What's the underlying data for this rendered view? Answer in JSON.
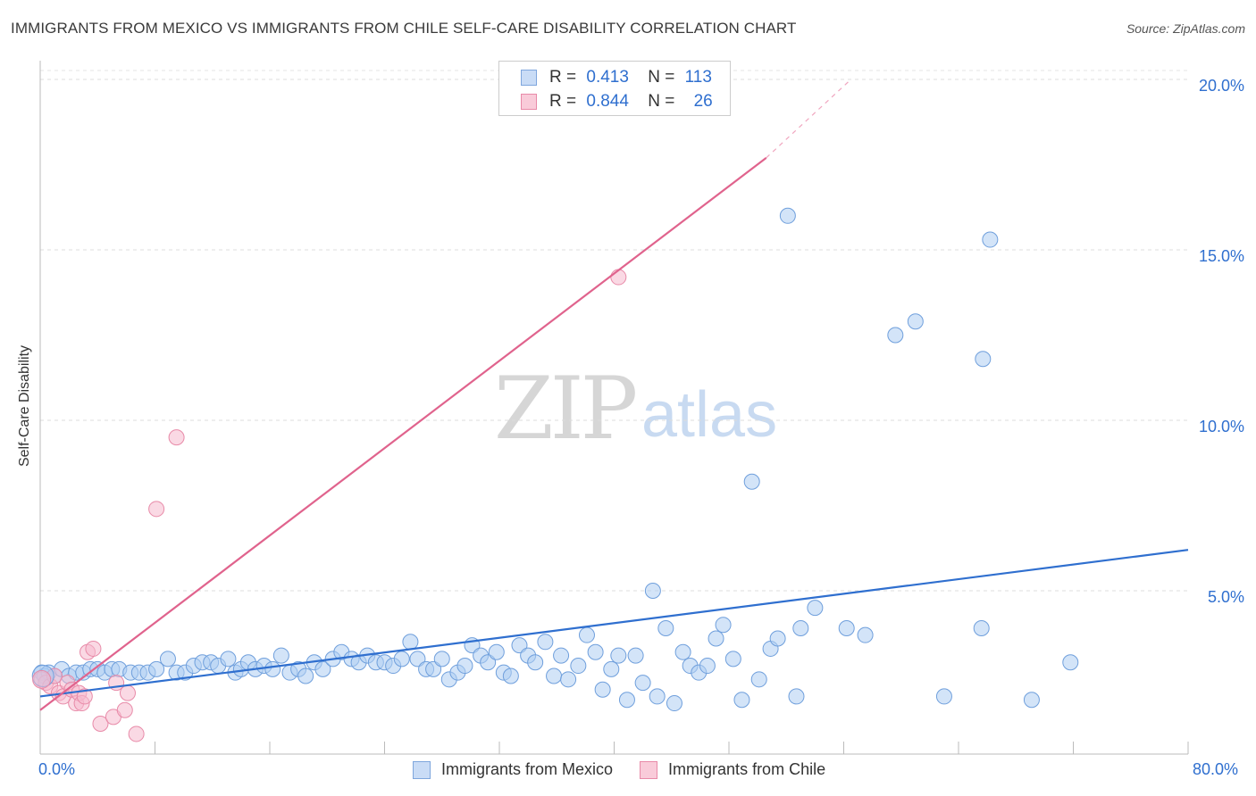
{
  "header": {
    "title": "IMMIGRANTS FROM MEXICO VS IMMIGRANTS FROM CHILE SELF-CARE DISABILITY CORRELATION CHART",
    "source": "Source: ZipAtlas.com"
  },
  "watermark": {
    "zip": "ZIP",
    "atlas": "atlas"
  },
  "legend_top": {
    "rows": [
      {
        "r_label": "R =",
        "r_value": "0.413",
        "n_label": "N =",
        "n_value": "113",
        "color": "#aecdf3"
      },
      {
        "r_label": "R =",
        "r_value": "0.844",
        "n_label": "N =",
        "n_value": "26",
        "color": "#f6b9cd"
      }
    ]
  },
  "chart_data": {
    "type": "scatter",
    "title": "IMMIGRANTS FROM MEXICO VS IMMIGRANTS FROM CHILE SELF-CARE DISABILITY CORRELATION CHART",
    "xlabel": "",
    "ylabel": "Self-Care Disability",
    "xlim": [
      0,
      80
    ],
    "ylim": [
      0,
      20.5
    ],
    "x_tick_labels": [
      "0.0%",
      "80.0%"
    ],
    "y_ticks": [
      5,
      10,
      15,
      20
    ],
    "y_tick_labels": [
      "5.0%",
      "10.0%",
      "15.0%",
      "20.0%"
    ],
    "grid": true,
    "legend_position": "bottom",
    "series": [
      {
        "name": "Immigrants from Mexico",
        "color": "#aecdf3",
        "edge": "#6f9fdc",
        "trend": {
          "x": [
            0,
            80
          ],
          "y": [
            1.9,
            6.2
          ],
          "color": "#2f6fcf"
        },
        "points": [
          [
            0.1,
            2.6
          ],
          [
            0.3,
            2.5
          ],
          [
            0.6,
            2.6
          ],
          [
            1.0,
            2.5
          ],
          [
            1.5,
            2.7
          ],
          [
            2.0,
            2.5
          ],
          [
            2.5,
            2.6
          ],
          [
            3.0,
            2.6
          ],
          [
            3.5,
            2.7
          ],
          [
            4.0,
            2.7
          ],
          [
            4.5,
            2.6
          ],
          [
            5.0,
            2.7
          ],
          [
            5.5,
            2.7
          ],
          [
            6.3,
            2.6
          ],
          [
            6.9,
            2.6
          ],
          [
            7.5,
            2.6
          ],
          [
            8.1,
            2.7
          ],
          [
            8.9,
            3.0
          ],
          [
            9.5,
            2.6
          ],
          [
            10.1,
            2.6
          ],
          [
            10.7,
            2.8
          ],
          [
            11.3,
            2.9
          ],
          [
            11.9,
            2.9
          ],
          [
            12.4,
            2.8
          ],
          [
            13.1,
            3.0
          ],
          [
            13.6,
            2.6
          ],
          [
            14.0,
            2.7
          ],
          [
            14.5,
            2.9
          ],
          [
            15.0,
            2.7
          ],
          [
            15.6,
            2.8
          ],
          [
            16.2,
            2.7
          ],
          [
            16.8,
            3.1
          ],
          [
            17.4,
            2.6
          ],
          [
            18.0,
            2.7
          ],
          [
            18.5,
            2.5
          ],
          [
            19.1,
            2.9
          ],
          [
            19.7,
            2.7
          ],
          [
            20.4,
            3.0
          ],
          [
            21.0,
            3.2
          ],
          [
            21.7,
            3.0
          ],
          [
            22.2,
            2.9
          ],
          [
            22.8,
            3.1
          ],
          [
            23.4,
            2.9
          ],
          [
            24.0,
            2.9
          ],
          [
            24.6,
            2.8
          ],
          [
            25.2,
            3.0
          ],
          [
            25.8,
            3.5
          ],
          [
            26.3,
            3.0
          ],
          [
            26.9,
            2.7
          ],
          [
            27.4,
            2.7
          ],
          [
            28.0,
            3.0
          ],
          [
            28.5,
            2.4
          ],
          [
            29.1,
            2.6
          ],
          [
            29.6,
            2.8
          ],
          [
            30.1,
            3.4
          ],
          [
            30.7,
            3.1
          ],
          [
            31.2,
            2.9
          ],
          [
            31.8,
            3.2
          ],
          [
            32.3,
            2.6
          ],
          [
            32.8,
            2.5
          ],
          [
            33.4,
            3.4
          ],
          [
            34.0,
            3.1
          ],
          [
            34.5,
            2.9
          ],
          [
            35.2,
            3.5
          ],
          [
            35.8,
            2.5
          ],
          [
            36.3,
            3.1
          ],
          [
            36.8,
            2.4
          ],
          [
            37.5,
            2.8
          ],
          [
            38.1,
            3.7
          ],
          [
            38.7,
            3.2
          ],
          [
            39.2,
            2.1
          ],
          [
            39.8,
            2.7
          ],
          [
            40.3,
            3.1
          ],
          [
            40.9,
            1.8
          ],
          [
            41.5,
            3.1
          ],
          [
            42.0,
            2.3
          ],
          [
            42.7,
            5.0
          ],
          [
            43.0,
            1.9
          ],
          [
            43.6,
            3.9
          ],
          [
            44.2,
            1.7
          ],
          [
            44.8,
            3.2
          ],
          [
            45.3,
            2.8
          ],
          [
            45.9,
            2.6
          ],
          [
            46.5,
            2.8
          ],
          [
            47.1,
            3.6
          ],
          [
            47.6,
            4.0
          ],
          [
            48.3,
            3.0
          ],
          [
            48.9,
            1.8
          ],
          [
            49.6,
            8.2
          ],
          [
            50.1,
            2.4
          ],
          [
            50.9,
            3.3
          ],
          [
            51.4,
            3.6
          ],
          [
            52.1,
            16.0
          ],
          [
            52.7,
            1.9
          ],
          [
            53.0,
            3.9
          ],
          [
            54.0,
            4.5
          ],
          [
            56.2,
            3.9
          ],
          [
            57.5,
            3.7
          ],
          [
            59.6,
            12.5
          ],
          [
            61.0,
            12.9
          ],
          [
            63.0,
            1.9
          ],
          [
            65.7,
            11.8
          ],
          [
            66.2,
            15.3
          ],
          [
            65.6,
            3.9
          ],
          [
            69.1,
            1.8
          ],
          [
            71.8,
            2.9
          ]
        ]
      },
      {
        "name": "Immigrants from Chile",
        "color": "#f6b9cd",
        "edge": "#e88aa8",
        "trend": {
          "x": [
            0,
            50.6
          ],
          "y": [
            1.5,
            17.7
          ],
          "dash_to": [
            56.5,
            20.0
          ],
          "color": "#e0638d"
        },
        "points": [
          [
            0.1,
            2.4
          ],
          [
            0.4,
            2.3
          ],
          [
            0.7,
            2.2
          ],
          [
            1.0,
            2.5
          ],
          [
            1.3,
            2.0
          ],
          [
            1.6,
            1.9
          ],
          [
            1.9,
            2.3
          ],
          [
            2.2,
            2.1
          ],
          [
            2.5,
            1.7
          ],
          [
            2.7,
            2.0
          ],
          [
            2.9,
            1.7
          ],
          [
            3.1,
            1.9
          ],
          [
            3.3,
            3.2
          ],
          [
            3.7,
            3.3
          ],
          [
            4.2,
            1.1
          ],
          [
            5.1,
            1.3
          ],
          [
            5.3,
            2.3
          ],
          [
            5.9,
            1.5
          ],
          [
            6.1,
            2.0
          ],
          [
            6.7,
            0.8
          ],
          [
            8.1,
            7.4
          ],
          [
            9.5,
            9.5
          ],
          [
            40.3,
            14.2
          ]
        ]
      }
    ]
  }
}
